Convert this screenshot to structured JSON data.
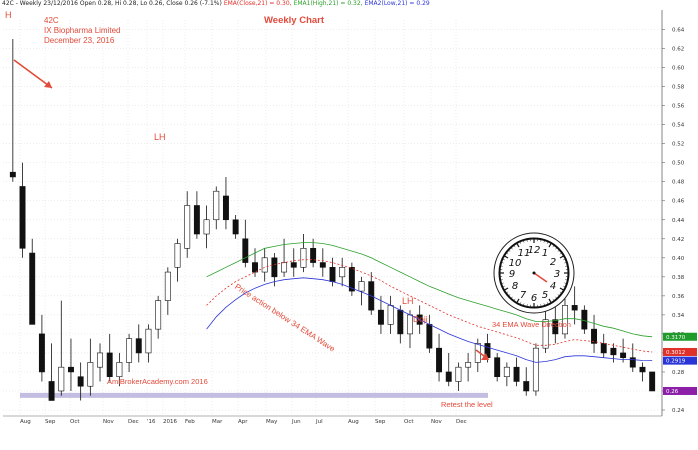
{
  "header": {
    "symbol_line": "42C - Weekly 23/12/2016 Open 0.28, Hi 0.28, Lo 0.26, Close 0.26 (-7.1%)",
    "ema_close": "EMA(Close,21) = 0.30,",
    "ema1_high": "EMA1(High,21) = 0.32,",
    "ema2_low": "EMA2(Low,21) = 0.29"
  },
  "annotations": {
    "code": "42C",
    "company": "IX Biopharma Limited",
    "date": "December 23, 2016",
    "chart_title": "Weekly Chart",
    "h_label": "H",
    "lh_label_1": "LH",
    "lh_label_2": "LH",
    "doji_label": "Doji",
    "price_action": "Price action below 34 EMA Wave",
    "watermark": "AmiBrokerAcademy.com 2016",
    "retest": "Retest the level",
    "clock_caption": "34 EMA Wave Direction"
  },
  "colors": {
    "annotation": "#e24a3a",
    "ema_high": "#2ca02c",
    "ema_close": "#e0302a",
    "ema_low": "#2a35d8",
    "support_band": "#b9b3dc",
    "last_price": "#8b1fa8"
  },
  "chart_data": {
    "type": "candlestick",
    "x_tick_labels": [
      "Aug",
      "Sep",
      "Oct",
      "Nov",
      "Dec",
      "'16",
      "2016",
      "Feb",
      "Mar",
      "Apr",
      "May",
      "Jun",
      "Jul",
      "Aug",
      "Sep",
      "Oct",
      "Nov",
      "Dec"
    ],
    "y_ticks": [
      "0.24",
      "0.26",
      "0.28",
      "0.30",
      "0.32",
      "0.34",
      "0.36",
      "0.38",
      "0.40",
      "0.42",
      "0.44",
      "0.46",
      "0.48",
      "0.50",
      "0.52",
      "0.54",
      "0.56",
      "0.58",
      "0.60",
      "0.62",
      "0.64"
    ],
    "ylim": [
      0.24,
      0.65
    ],
    "price_tags": [
      {
        "label": "0.3170",
        "value": 0.317,
        "color": "#1e9b2a"
      },
      {
        "label": "0.3012",
        "value": 0.301,
        "color": "#e0302a"
      },
      {
        "label": "0.2919",
        "value": 0.2919,
        "color": "#2a35d8"
      },
      {
        "label": "0.26",
        "value": 0.26,
        "color": "#8b1fa8"
      }
    ],
    "candles": [
      [
        0.49,
        0.63,
        0.48,
        0.485
      ],
      [
        0.475,
        0.5,
        0.4,
        0.41
      ],
      [
        0.405,
        0.42,
        0.33,
        0.33
      ],
      [
        0.32,
        0.34,
        0.27,
        0.28
      ],
      [
        0.27,
        0.31,
        0.25,
        0.25
      ],
      [
        0.26,
        0.355,
        0.255,
        0.285
      ],
      [
        0.285,
        0.315,
        0.26,
        0.28
      ],
      [
        0.275,
        0.29,
        0.25,
        0.265
      ],
      [
        0.265,
        0.315,
        0.255,
        0.29
      ],
      [
        0.285,
        0.31,
        0.27,
        0.3
      ],
      [
        0.3,
        0.32,
        0.27,
        0.275
      ],
      [
        0.275,
        0.3,
        0.265,
        0.29
      ],
      [
        0.29,
        0.32,
        0.28,
        0.315
      ],
      [
        0.315,
        0.33,
        0.29,
        0.3
      ],
      [
        0.3,
        0.33,
        0.29,
        0.325
      ],
      [
        0.325,
        0.36,
        0.315,
        0.355
      ],
      [
        0.355,
        0.39,
        0.34,
        0.385
      ],
      [
        0.39,
        0.42,
        0.375,
        0.415
      ],
      [
        0.41,
        0.47,
        0.4,
        0.455
      ],
      [
        0.455,
        0.47,
        0.42,
        0.425
      ],
      [
        0.425,
        0.455,
        0.41,
        0.44
      ],
      [
        0.44,
        0.475,
        0.43,
        0.47
      ],
      [
        0.465,
        0.485,
        0.43,
        0.44
      ],
      [
        0.44,
        0.445,
        0.42,
        0.425
      ],
      [
        0.42,
        0.44,
        0.39,
        0.395
      ],
      [
        0.395,
        0.41,
        0.38,
        0.385
      ],
      [
        0.385,
        0.41,
        0.375,
        0.4
      ],
      [
        0.4,
        0.405,
        0.37,
        0.38
      ],
      [
        0.385,
        0.42,
        0.38,
        0.395
      ],
      [
        0.395,
        0.41,
        0.38,
        0.39
      ],
      [
        0.39,
        0.425,
        0.385,
        0.41
      ],
      [
        0.41,
        0.42,
        0.39,
        0.395
      ],
      [
        0.395,
        0.41,
        0.38,
        0.39
      ],
      [
        0.39,
        0.4,
        0.37,
        0.375
      ],
      [
        0.38,
        0.4,
        0.37,
        0.39
      ],
      [
        0.39,
        0.395,
        0.36,
        0.365
      ],
      [
        0.365,
        0.38,
        0.35,
        0.375
      ],
      [
        0.375,
        0.385,
        0.34,
        0.345
      ],
      [
        0.345,
        0.36,
        0.32,
        0.33
      ],
      [
        0.33,
        0.36,
        0.32,
        0.35
      ],
      [
        0.345,
        0.35,
        0.31,
        0.32
      ],
      [
        0.32,
        0.345,
        0.305,
        0.34
      ],
      [
        0.34,
        0.35,
        0.32,
        0.33
      ],
      [
        0.33,
        0.34,
        0.3,
        0.305
      ],
      [
        0.305,
        0.32,
        0.27,
        0.28
      ],
      [
        0.28,
        0.3,
        0.265,
        0.27
      ],
      [
        0.27,
        0.29,
        0.26,
        0.285
      ],
      [
        0.285,
        0.3,
        0.27,
        0.29
      ],
      [
        0.29,
        0.315,
        0.28,
        0.31
      ],
      [
        0.31,
        0.32,
        0.29,
        0.295
      ],
      [
        0.295,
        0.3,
        0.27,
        0.275
      ],
      [
        0.275,
        0.29,
        0.265,
        0.285
      ],
      [
        0.285,
        0.295,
        0.265,
        0.27
      ],
      [
        0.27,
        0.285,
        0.255,
        0.26
      ],
      [
        0.26,
        0.31,
        0.255,
        0.305
      ],
      [
        0.305,
        0.345,
        0.3,
        0.335
      ],
      [
        0.335,
        0.36,
        0.31,
        0.32
      ],
      [
        0.32,
        0.38,
        0.315,
        0.35
      ],
      [
        0.35,
        0.37,
        0.33,
        0.345
      ],
      [
        0.345,
        0.35,
        0.32,
        0.325
      ],
      [
        0.325,
        0.34,
        0.3,
        0.31
      ],
      [
        0.31,
        0.32,
        0.295,
        0.3
      ],
      [
        0.305,
        0.31,
        0.29,
        0.298
      ],
      [
        0.3,
        0.315,
        0.29,
        0.295
      ],
      [
        0.295,
        0.31,
        0.28,
        0.285
      ],
      [
        0.285,
        0.29,
        0.27,
        0.28
      ],
      [
        0.28,
        0.28,
        0.26,
        0.26
      ]
    ],
    "ema_high": [
      null,
      null,
      null,
      null,
      null,
      null,
      null,
      null,
      null,
      null,
      null,
      null,
      null,
      null,
      null,
      null,
      null,
      null,
      null,
      null,
      0.38,
      0.385,
      0.39,
      0.395,
      0.4,
      0.405,
      0.41,
      0.412,
      0.414,
      0.415,
      0.416,
      0.416,
      0.415,
      0.413,
      0.41,
      0.407,
      0.404,
      0.4,
      0.395,
      0.39,
      0.385,
      0.38,
      0.375,
      0.37,
      0.366,
      0.362,
      0.358,
      0.355,
      0.352,
      0.349,
      0.346,
      0.343,
      0.34,
      0.336,
      0.333,
      0.333,
      0.334,
      0.336,
      0.336,
      0.334,
      0.331,
      0.328,
      0.326,
      0.323,
      0.32,
      0.318,
      0.317
    ],
    "ema_close": [
      null,
      null,
      null,
      null,
      null,
      null,
      null,
      null,
      null,
      null,
      null,
      null,
      null,
      null,
      null,
      null,
      null,
      null,
      null,
      null,
      0.35,
      0.36,
      0.368,
      0.375,
      0.38,
      0.385,
      0.39,
      0.393,
      0.395,
      0.397,
      0.398,
      0.398,
      0.397,
      0.395,
      0.392,
      0.389,
      0.385,
      0.381,
      0.376,
      0.37,
      0.365,
      0.36,
      0.355,
      0.35,
      0.345,
      0.34,
      0.336,
      0.332,
      0.328,
      0.325,
      0.322,
      0.319,
      0.316,
      0.312,
      0.308,
      0.308,
      0.309,
      0.312,
      0.314,
      0.313,
      0.312,
      0.31,
      0.308,
      0.306,
      0.304,
      0.302,
      0.301
    ],
    "ema_low": [
      null,
      null,
      null,
      null,
      null,
      null,
      null,
      null,
      null,
      null,
      null,
      null,
      null,
      null,
      null,
      null,
      null,
      null,
      null,
      null,
      0.325,
      0.338,
      0.348,
      0.356,
      0.363,
      0.368,
      0.372,
      0.375,
      0.377,
      0.378,
      0.379,
      0.378,
      0.377,
      0.375,
      0.372,
      0.368,
      0.364,
      0.36,
      0.355,
      0.35,
      0.345,
      0.34,
      0.335,
      0.33,
      0.325,
      0.32,
      0.316,
      0.312,
      0.309,
      0.306,
      0.303,
      0.3,
      0.297,
      0.293,
      0.29,
      0.291,
      0.293,
      0.296,
      0.297,
      0.297,
      0.296,
      0.295,
      0.294,
      0.293,
      0.293,
      0.292,
      0.2919
    ],
    "support_band": [
      0.255,
      0.258
    ]
  }
}
